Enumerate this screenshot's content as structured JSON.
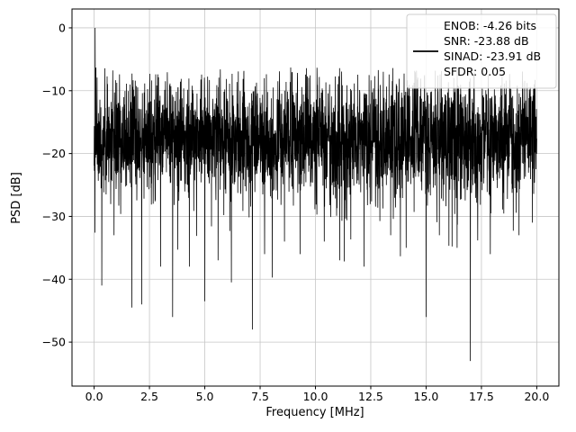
{
  "chart_data": {
    "type": "line",
    "title": "",
    "xlabel": "Frequency [MHz]",
    "ylabel": "PSD [dB]",
    "xlim": [
      -1,
      21
    ],
    "ylim": [
      -57,
      3
    ],
    "xticks": [
      0.0,
      2.5,
      5.0,
      7.5,
      10.0,
      12.5,
      15.0,
      17.5,
      20.0
    ],
    "xtick_labels": [
      "0.0",
      "2.5",
      "5.0",
      "7.5",
      "10.0",
      "12.5",
      "15.0",
      "17.5",
      "20.0"
    ],
    "yticks": [
      0,
      -10,
      -20,
      -30,
      -40,
      -50
    ],
    "ytick_labels": [
      "0",
      "−10",
      "−20",
      "−30",
      "−40",
      "−50"
    ],
    "grid": true,
    "grid_color": "#c6c6c6",
    "line_color": "#000000",
    "legend": {
      "position": "upper right",
      "entries": [
        "ENOB: -4.26 bits",
        "SNR: -23.88 dB",
        "SINAD: -23.91 dB",
        "SFDR: 0.05"
      ]
    },
    "signal_peak": {
      "x": 0.05,
      "y": 0
    },
    "noise": {
      "seed": 42,
      "n_points": 3000,
      "x_min": 0,
      "x_max": 20,
      "mean": -17.5,
      "std": 4.6,
      "ceiling": -6.3,
      "dip_prob": 0.02,
      "dip_extra_min": 3,
      "dip_extra_max": 16
    },
    "deep_dips": [
      {
        "x": 0.35,
        "y": -41
      },
      {
        "x": 0.9,
        "y": -33
      },
      {
        "x": 1.7,
        "y": -44.5
      },
      {
        "x": 2.15,
        "y": -44
      },
      {
        "x": 3.0,
        "y": -38
      },
      {
        "x": 3.55,
        "y": -46
      },
      {
        "x": 4.3,
        "y": -38
      },
      {
        "x": 5.0,
        "y": -43.5
      },
      {
        "x": 5.6,
        "y": -37
      },
      {
        "x": 6.2,
        "y": -40.5
      },
      {
        "x": 7.15,
        "y": -48
      },
      {
        "x": 7.7,
        "y": -36
      },
      {
        "x": 8.6,
        "y": -34
      },
      {
        "x": 9.3,
        "y": -36
      },
      {
        "x": 10.4,
        "y": -34
      },
      {
        "x": 11.1,
        "y": -37
      },
      {
        "x": 12.2,
        "y": -38
      },
      {
        "x": 13.4,
        "y": -33
      },
      {
        "x": 14.1,
        "y": -35
      },
      {
        "x": 15.0,
        "y": -46
      },
      {
        "x": 15.6,
        "y": -33
      },
      {
        "x": 16.4,
        "y": -35
      },
      {
        "x": 17.0,
        "y": -53
      },
      {
        "x": 17.9,
        "y": -36
      },
      {
        "x": 19.2,
        "y": -33
      },
      {
        "x": 19.8,
        "y": -31
      }
    ]
  }
}
